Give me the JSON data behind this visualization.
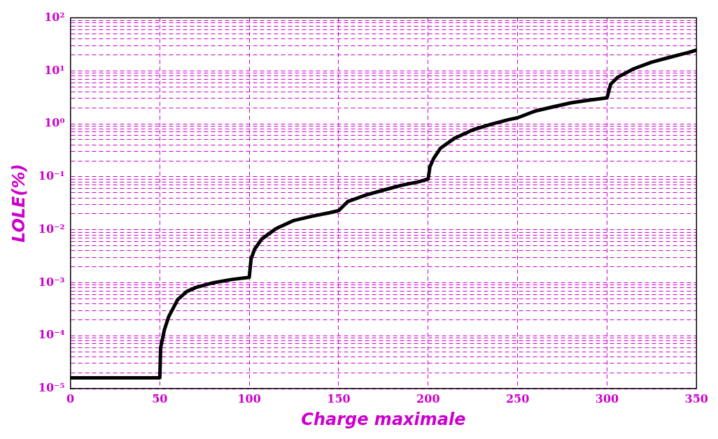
{
  "chart_data": {
    "type": "line",
    "xlabel": "Charge maximale",
    "ylabel": "LOLE(%)",
    "log": "y",
    "grid": true,
    "legend": false,
    "marker": "none",
    "line_style": "solid",
    "xlim": [
      0,
      350
    ],
    "xticks": [
      0,
      50,
      100,
      150,
      200,
      250,
      300,
      350
    ],
    "ylim": [
      1e-05,
      100
    ],
    "yticks": [
      {
        "value": 1e-05,
        "label": "10⁻⁵"
      },
      {
        "value": 2e-05,
        "label": null
      },
      {
        "value": 3e-05,
        "label": null
      },
      {
        "value": 4e-05,
        "label": null
      },
      {
        "value": 5e-05,
        "label": null
      },
      {
        "value": 6e-05,
        "label": null
      },
      {
        "value": 7e-05,
        "label": null
      },
      {
        "value": 8e-05,
        "label": null
      },
      {
        "value": 9e-05,
        "label": null
      },
      {
        "value": 0.0001,
        "label": "10⁻⁴"
      },
      {
        "value": 0.0002,
        "label": null
      },
      {
        "value": 0.0003,
        "label": null
      },
      {
        "value": 0.0004,
        "label": null
      },
      {
        "value": 0.0005,
        "label": null
      },
      {
        "value": 0.0006,
        "label": null
      },
      {
        "value": 0.0007,
        "label": null
      },
      {
        "value": 0.0008,
        "label": null
      },
      {
        "value": 0.0009,
        "label": null
      },
      {
        "value": 0.001,
        "label": "10⁻³"
      },
      {
        "value": 0.002,
        "label": null
      },
      {
        "value": 0.003,
        "label": null
      },
      {
        "value": 0.004,
        "label": null
      },
      {
        "value": 0.005,
        "label": null
      },
      {
        "value": 0.006,
        "label": null
      },
      {
        "value": 0.007,
        "label": null
      },
      {
        "value": 0.008,
        "label": null
      },
      {
        "value": 0.009,
        "label": null
      },
      {
        "value": 0.01,
        "label": "10⁻²"
      },
      {
        "value": 0.02,
        "label": null
      },
      {
        "value": 0.03,
        "label": null
      },
      {
        "value": 0.04,
        "label": null
      },
      {
        "value": 0.05,
        "label": null
      },
      {
        "value": 0.06,
        "label": null
      },
      {
        "value": 0.07,
        "label": null
      },
      {
        "value": 0.08,
        "label": null
      },
      {
        "value": 0.09,
        "label": null
      },
      {
        "value": 0.1,
        "label": "10⁻¹"
      },
      {
        "value": 0.2,
        "label": null
      },
      {
        "value": 0.3,
        "label": null
      },
      {
        "value": 0.4,
        "label": null
      },
      {
        "value": 0.5,
        "label": null
      },
      {
        "value": 0.6,
        "label": null
      },
      {
        "value": 0.7,
        "label": null
      },
      {
        "value": 0.8,
        "label": null
      },
      {
        "value": 0.9,
        "label": null
      },
      {
        "value": 1,
        "label": "10⁰"
      },
      {
        "value": 2,
        "label": null
      },
      {
        "value": 3,
        "label": null
      },
      {
        "value": 4,
        "label": null
      },
      {
        "value": 5,
        "label": null
      },
      {
        "value": 6,
        "label": null
      },
      {
        "value": 7,
        "label": null
      },
      {
        "value": 8,
        "label": null
      },
      {
        "value": 9,
        "label": null
      },
      {
        "value": 10,
        "label": "10¹"
      },
      {
        "value": 20,
        "label": null
      },
      {
        "value": 30,
        "label": null
      },
      {
        "value": 40,
        "label": null
      },
      {
        "value": 50,
        "label": null
      },
      {
        "value": 60,
        "label": null
      },
      {
        "value": 70,
        "label": null
      },
      {
        "value": 80,
        "label": null
      },
      {
        "value": 90,
        "label": null
      },
      {
        "value": 100,
        "label": "10²"
      }
    ],
    "x": [
      0,
      50,
      50.5,
      52.6,
      55,
      60,
      65,
      70,
      80,
      90,
      100,
      101,
      103,
      107,
      115,
      125,
      135,
      145,
      150,
      155,
      165,
      175,
      185,
      195,
      200,
      201,
      203,
      207,
      215,
      225,
      235,
      245,
      250,
      260,
      270,
      280,
      290,
      300,
      302,
      306,
      315,
      325,
      335,
      345,
      350
    ],
    "series": [
      {
        "color": "#000000",
        "values": [
          1.6e-05,
          1.6e-05,
          6e-05,
          0.00013,
          0.00023,
          0.00048,
          0.00068,
          0.00081,
          0.001,
          0.00115,
          0.00126,
          0.0028,
          0.0043,
          0.0067,
          0.0105,
          0.015,
          0.018,
          0.021,
          0.023,
          0.034,
          0.045,
          0.056,
          0.069,
          0.081,
          0.091,
          0.155,
          0.22,
          0.35,
          0.54,
          0.77,
          0.98,
          1.2,
          1.3,
          1.75,
          2.1,
          2.5,
          2.8,
          3.1,
          5.6,
          7.6,
          11,
          14.6,
          18,
          22,
          24.6
        ]
      }
    ]
  }
}
